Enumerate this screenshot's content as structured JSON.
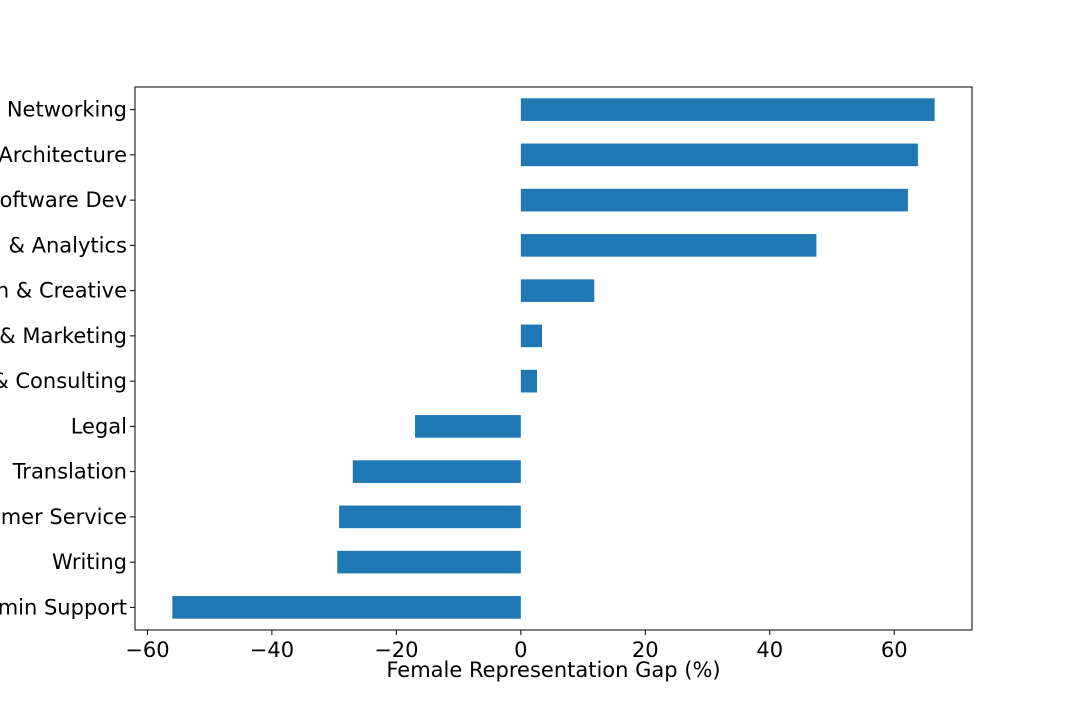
{
  "chart_data": {
    "type": "bar",
    "orientation": "horizontal",
    "title": "",
    "xlabel": "Female Representation Gap (%)",
    "ylabel": "",
    "xlim": [
      -62,
      72.5
    ],
    "xticks": [
      -60,
      -40,
      -20,
      0,
      20,
      40,
      60
    ],
    "xtick_labels": [
      "−60",
      "−40",
      "−20",
      "0",
      "20",
      "40",
      "60"
    ],
    "grid": false,
    "legend": "none",
    "bar_color": "#1f77b4",
    "categories": [
      "Networking",
      "Architecture",
      "oftware Dev",
      "& Analytics",
      "n & Creative",
      "& Marketing",
      "& Consulting",
      "Legal",
      "Translation",
      "mer Service",
      "Writing",
      "min Support"
    ],
    "values": [
      66.5,
      63.8,
      62.2,
      47.5,
      11.8,
      3.4,
      2.6,
      -17.0,
      -27.0,
      -29.2,
      -29.5,
      -56.0
    ]
  }
}
